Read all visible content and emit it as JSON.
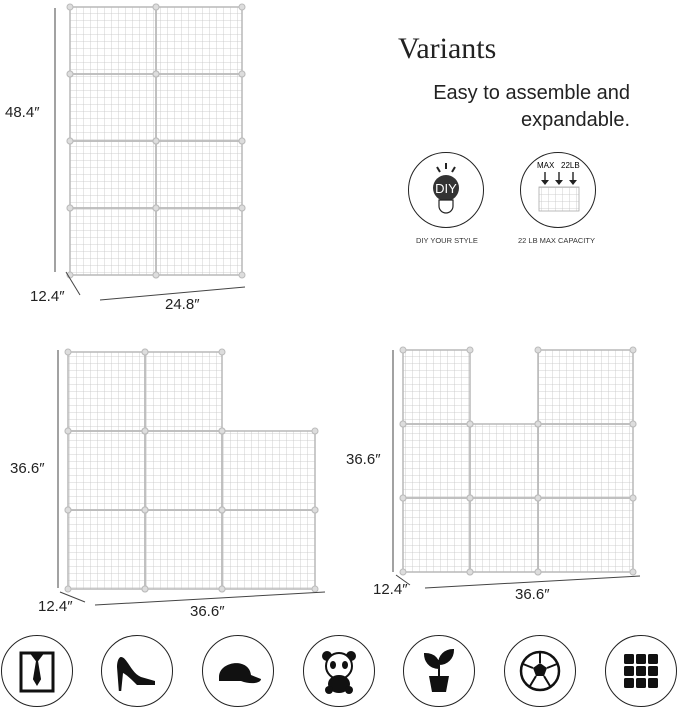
{
  "heading": {
    "title": "Variants",
    "subtitle_line1": "Easy to assemble and",
    "subtitle_line2": "expandable."
  },
  "features": [
    {
      "icon": "diy-bulb-icon",
      "badge_text": "DIY",
      "caption": "DIY YOUR STYLE"
    },
    {
      "icon": "weight-capacity-icon",
      "badge_text_left": "MAX",
      "badge_text_right": "22LB",
      "caption": "22 LB MAX CAPACITY"
    }
  ],
  "variants": [
    {
      "height": "48.4″",
      "depth": "12.4″",
      "width": "24.8″",
      "layout": "2 x 4 cubes"
    },
    {
      "height": "36.6″",
      "depth": "12.4″",
      "width": "36.6″",
      "layout": "3 x 3 steps"
    },
    {
      "height": "36.6″",
      "depth": "12.4″",
      "width": "36.6″",
      "layout": "3 x 3 U-shape"
    }
  ],
  "use_icons": [
    "shirt-tie-icon",
    "high-heel-icon",
    "cap-icon",
    "panda-toy-icon",
    "potted-plant-icon",
    "soccer-ball-icon",
    "grid-cubes-icon"
  ],
  "colors": {
    "wire": "#b8b8b8",
    "ink": "#222222"
  }
}
